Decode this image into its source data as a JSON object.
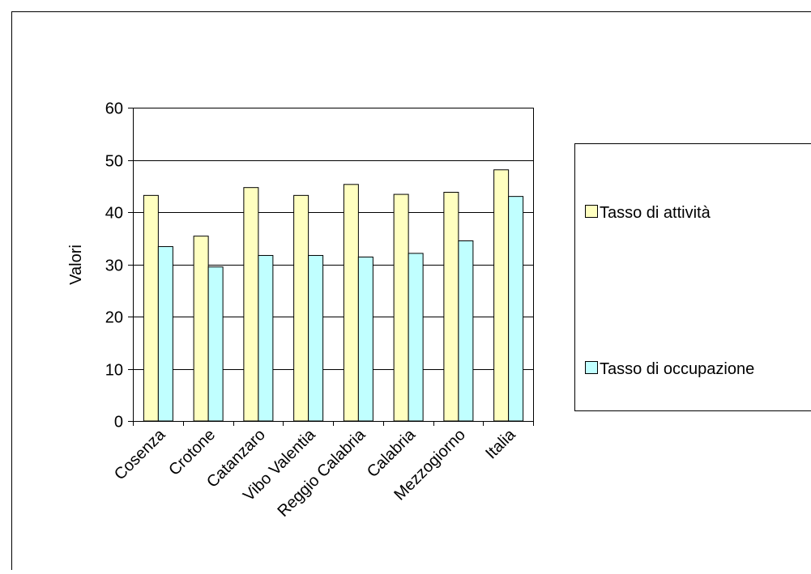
{
  "chart_data": {
    "type": "bar",
    "title": "",
    "xlabel": "",
    "ylabel": "Valori",
    "ylim": [
      0,
      60
    ],
    "yticks": [
      0,
      10,
      20,
      30,
      40,
      50,
      60
    ],
    "categories": [
      "Cosenza",
      "Crotone",
      "Catanzaro",
      "Vibo Valentia",
      "Reggio Calabria",
      "Calabria",
      "Mezzogiorno",
      "Italia"
    ],
    "series": [
      {
        "name": "Tasso di attività",
        "color": "#FFFFC0",
        "values": [
          43.2,
          35.4,
          44.7,
          43.2,
          45.3,
          43.4,
          43.8,
          48.1
        ]
      },
      {
        "name": "Tasso di occupazione",
        "color": "#C0FFFF",
        "values": [
          33.4,
          29.5,
          31.7,
          31.7,
          31.4,
          32.1,
          34.5,
          43.0
        ]
      }
    ],
    "grid": true,
    "legend": "right"
  }
}
